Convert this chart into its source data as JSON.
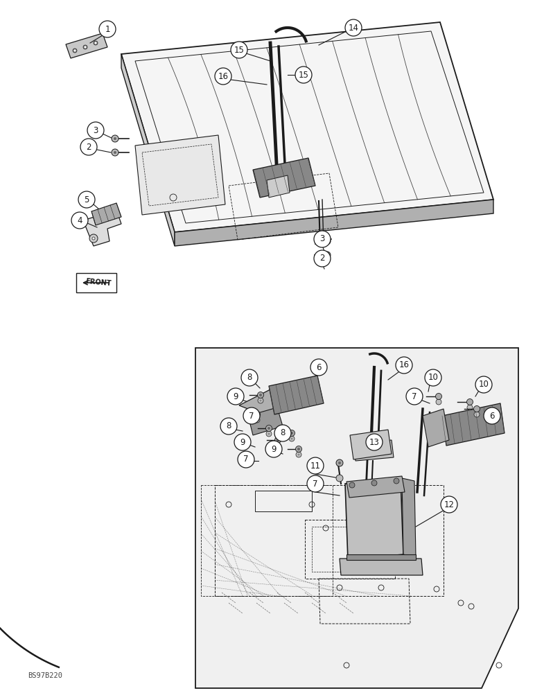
{
  "bg_color": "#ffffff",
  "line_color": "#1a1a1a",
  "figure_size": [
    7.72,
    10.0
  ],
  "dpi": 100,
  "watermark": "BS97B220",
  "gray_light": "#cccccc",
  "gray_mid": "#999999",
  "gray_dark": "#666666"
}
